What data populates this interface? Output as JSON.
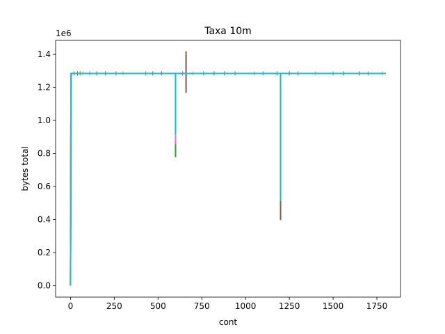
{
  "chart_data": {
    "type": "line",
    "title": "Taxa 10m",
    "xlabel": "cont",
    "ylabel": "bytes total",
    "y_offset_label": "1e6",
    "xlim": [
      -85,
      1885
    ],
    "ylim": [
      -70000,
      1485000
    ],
    "x_ticks": [
      0,
      250,
      500,
      750,
      1000,
      1250,
      1500,
      1750
    ],
    "x_tick_labels": [
      "0",
      "250",
      "500",
      "750",
      "1000",
      "1250",
      "1500",
      "1750"
    ],
    "y_ticks": [
      0,
      200000,
      400000,
      600000,
      800000,
      1000000,
      1200000,
      1400000
    ],
    "y_tick_labels": [
      "0.0",
      "0.2",
      "0.4",
      "0.6",
      "0.8",
      "1.0",
      "1.2",
      "1.4"
    ],
    "grid": false,
    "legend": "none",
    "plateau": 1285000,
    "series": [
      {
        "color": "#2ca02c",
        "points": [
          [
            0,
            0
          ],
          [
            3,
            1285000
          ],
          [
            595,
            1285000
          ],
          [
            600,
            1285000
          ],
          [
            600,
            780000
          ],
          [
            600,
            1285000
          ],
          [
            1800,
            1285000
          ]
        ]
      },
      {
        "color": "#8c564b",
        "points": [
          [
            0,
            0
          ],
          [
            3,
            1285000
          ],
          [
            660,
            1285000
          ],
          [
            660,
            1415000
          ],
          [
            660,
            1170000
          ],
          [
            660,
            1285000
          ],
          [
            1200,
            1285000
          ],
          [
            1200,
            400000
          ],
          [
            1200,
            1285000
          ],
          [
            1800,
            1285000
          ]
        ]
      },
      {
        "color": "#e377c2",
        "points": [
          [
            0,
            0
          ],
          [
            3,
            1285000
          ],
          [
            600,
            1285000
          ],
          [
            600,
            860000
          ],
          [
            600,
            1285000
          ],
          [
            1800,
            1285000
          ]
        ]
      },
      {
        "color": "#7f7f7f",
        "points": [
          [
            0,
            0
          ],
          [
            3,
            1285000
          ],
          [
            1800,
            1285000
          ]
        ]
      },
      {
        "color": "#bcbd22",
        "points": [
          [
            0,
            0
          ],
          [
            3,
            1285000
          ],
          [
            1800,
            1285000
          ]
        ]
      },
      {
        "color": "#17becf",
        "points": [
          [
            0,
            0
          ],
          [
            3,
            1285000
          ],
          [
            600,
            1285000
          ],
          [
            600,
            920000
          ],
          [
            600,
            1285000
          ],
          [
            1200,
            1285000
          ],
          [
            1200,
            515000
          ],
          [
            1200,
            1285000
          ],
          [
            1800,
            1285000
          ]
        ]
      }
    ]
  }
}
